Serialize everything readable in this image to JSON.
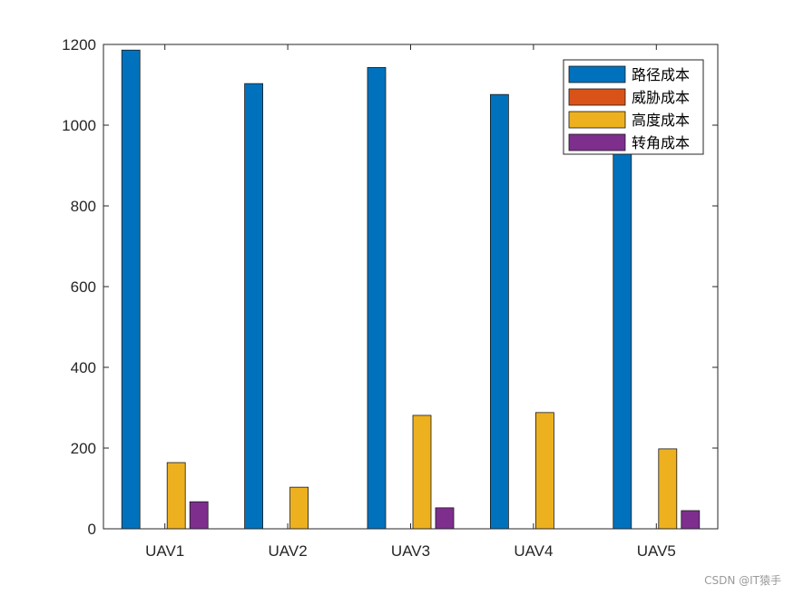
{
  "chart_data": {
    "type": "bar",
    "categories": [
      "UAV1",
      "UAV2",
      "UAV3",
      "UAV4",
      "UAV5"
    ],
    "series": [
      {
        "name": "路径成本",
        "color": "#0072BD",
        "values": [
          1186,
          1103,
          1143,
          1076,
          1112
        ]
      },
      {
        "name": "威胁成本",
        "color": "#D95319",
        "values": [
          0,
          0,
          0,
          0,
          0
        ]
      },
      {
        "name": "高度成本",
        "color": "#EDB120",
        "values": [
          164,
          103,
          281,
          288,
          198
        ]
      },
      {
        "name": "转角成本",
        "color": "#7E2F8E",
        "values": [
          67,
          0,
          52,
          0,
          45
        ]
      }
    ],
    "ylim": [
      0,
      1200
    ],
    "yticks": [
      0,
      200,
      400,
      600,
      800,
      1000,
      1200
    ],
    "title": "",
    "xlabel": "",
    "ylabel": "",
    "grid": false,
    "legend_position": "top-right"
  },
  "watermark": "CSDN @IT猿手"
}
